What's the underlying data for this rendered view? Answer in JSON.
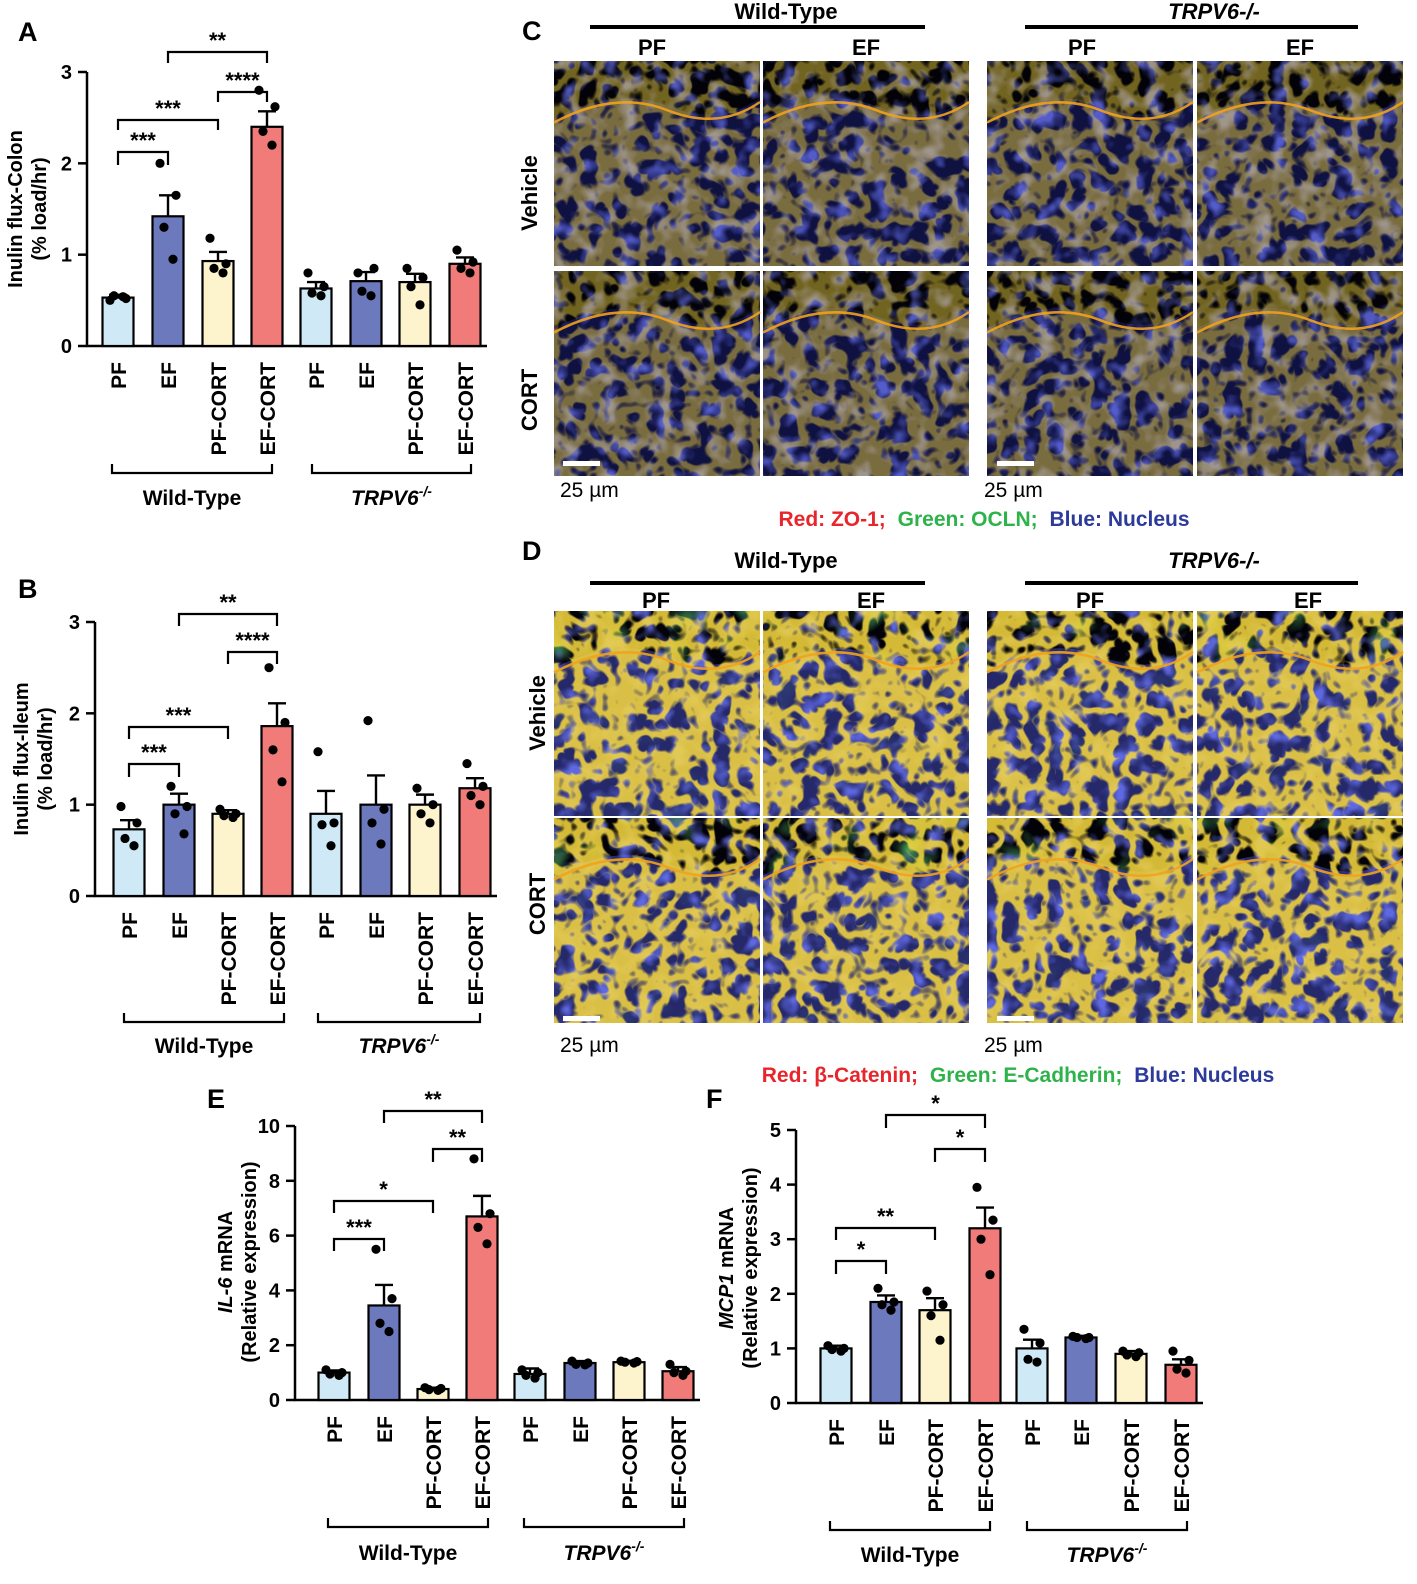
{
  "figure": {
    "panel_letters": [
      "A",
      "B",
      "C",
      "D",
      "E",
      "F"
    ],
    "group_labels": [
      "Wild-Type",
      "TRPV6",
      "-/-"
    ],
    "microscopy": {
      "col_groups": [
        "Wild-Type",
        "TRPV6-/-"
      ],
      "col_sub": [
        "PF",
        "EF",
        "PF",
        "EF"
      ],
      "rows": [
        "Vehicle",
        "CORT"
      ],
      "scale_bar": "25 µm",
      "legend_C": [
        {
          "text": "Red: ZO-1;",
          "color": "#e8252a"
        },
        {
          "text": "Green: OCLN;",
          "color": "#2db34a"
        },
        {
          "text": "Blue: Nucleus",
          "color": "#2b3a9b"
        }
      ],
      "legend_D": [
        {
          "text": "Red: β-Catenin;",
          "color": "#e8252a"
        },
        {
          "text": "Green: E-Cadherin;",
          "color": "#2db34a"
        },
        {
          "text": "Blue: Nucleus",
          "color": "#2b3a9b"
        }
      ]
    }
  },
  "chart_data": [
    {
      "panel": "A",
      "type": "bar",
      "categories": [
        "PF",
        "EF",
        "PF-CORT",
        "EF-CORT",
        "PF",
        "EF",
        "PF-CORT",
        "EF-CORT"
      ],
      "groups": [
        "Wild-Type",
        "TRPV6-/-"
      ],
      "ylabel": [
        "Inulin flux-Colon",
        "(% load/hr)"
      ],
      "ylim": [
        0,
        3
      ],
      "yticks": [
        0,
        1,
        2,
        3
      ],
      "values": [
        0.53,
        1.42,
        0.93,
        2.4,
        0.63,
        0.71,
        0.7,
        0.9
      ],
      "errors": [
        0.03,
        0.23,
        0.1,
        0.17,
        0.07,
        0.1,
        0.09,
        0.07
      ],
      "points": [
        [
          0.5,
          0.52,
          0.55,
          0.54
        ],
        [
          2.0,
          1.65,
          1.3,
          0.95
        ],
        [
          1.18,
          0.9,
          0.85,
          0.8
        ],
        [
          2.8,
          2.62,
          2.35,
          2.2
        ],
        [
          0.8,
          0.65,
          0.58,
          0.55
        ],
        [
          0.8,
          0.85,
          0.6,
          0.55
        ],
        [
          0.85,
          0.75,
          0.65,
          0.45
        ],
        [
          1.05,
          0.92,
          0.85,
          0.8
        ]
      ],
      "colors": [
        "#cfe9f6",
        "#6c79bd",
        "#fdf3cc",
        "#f07b78",
        "#cfe9f6",
        "#6c79bd",
        "#fdf3cc",
        "#f07b78"
      ],
      "significance": [
        {
          "from": 0,
          "to": 1,
          "label": "***"
        },
        {
          "from": 0,
          "to": 2,
          "label": "***"
        },
        {
          "from": 2,
          "to": 3,
          "label": "****"
        },
        {
          "from": 1,
          "to": 3,
          "label": "**"
        }
      ]
    },
    {
      "panel": "B",
      "type": "bar",
      "categories": [
        "PF",
        "EF",
        "PF-CORT",
        "EF-CORT",
        "PF",
        "EF",
        "PF-CORT",
        "EF-CORT"
      ],
      "groups": [
        "Wild-Type",
        "TRPV6-/-"
      ],
      "ylabel": [
        "Inulin flux-Ileum",
        "(% load/hr)"
      ],
      "ylim": [
        0,
        3
      ],
      "yticks": [
        0,
        1,
        2,
        3
      ],
      "values": [
        0.73,
        1.0,
        0.9,
        1.86,
        0.9,
        1.0,
        1.0,
        1.18
      ],
      "errors": [
        0.1,
        0.12,
        0.04,
        0.25,
        0.25,
        0.32,
        0.11,
        0.11
      ],
      "points": [
        [
          0.98,
          0.8,
          0.63,
          0.55
        ],
        [
          1.2,
          0.98,
          0.9,
          0.68
        ],
        [
          0.95,
          0.9,
          0.88,
          0.86
        ],
        [
          2.5,
          1.9,
          1.6,
          1.25
        ],
        [
          1.58,
          0.8,
          0.78,
          0.55
        ],
        [
          1.92,
          0.95,
          0.8,
          0.57
        ],
        [
          1.18,
          1.0,
          0.9,
          0.8
        ],
        [
          1.45,
          1.2,
          1.1,
          1.0
        ]
      ],
      "colors": [
        "#cfe9f6",
        "#6c79bd",
        "#fdf3cc",
        "#f07b78",
        "#cfe9f6",
        "#6c79bd",
        "#fdf3cc",
        "#f07b78"
      ],
      "significance": [
        {
          "from": 0,
          "to": 1,
          "label": "***"
        },
        {
          "from": 0,
          "to": 2,
          "label": "***"
        },
        {
          "from": 2,
          "to": 3,
          "label": "****"
        },
        {
          "from": 1,
          "to": 3,
          "label": "**"
        }
      ]
    },
    {
      "panel": "E",
      "type": "bar",
      "categories": [
        "PF",
        "EF",
        "PF-CORT",
        "EF-CORT",
        "PF",
        "EF",
        "PF-CORT",
        "EF-CORT"
      ],
      "groups": [
        "Wild-Type",
        "TRPV6-/-"
      ],
      "ylabel": [
        "IL-6 mRNA",
        "(Relative expression)"
      ],
      "ylim": [
        0,
        10
      ],
      "yticks": [
        0,
        2,
        4,
        6,
        8,
        10
      ],
      "values": [
        1.0,
        3.45,
        0.4,
        6.7,
        0.95,
        1.35,
        1.38,
        1.05
      ],
      "errors": [
        0.08,
        0.75,
        0.05,
        0.75,
        0.2,
        0.07,
        0.05,
        0.15
      ],
      "points": [
        [
          1.1,
          1.0,
          0.95,
          0.9
        ],
        [
          5.5,
          3.7,
          2.8,
          2.5
        ],
        [
          0.45,
          0.42,
          0.38,
          0.35
        ],
        [
          8.8,
          6.8,
          6.3,
          5.7
        ],
        [
          1.1,
          1.0,
          0.9,
          0.8
        ],
        [
          1.42,
          1.35,
          1.3,
          1.28
        ],
        [
          1.42,
          1.4,
          1.38,
          1.35
        ],
        [
          1.3,
          1.05,
          1.0,
          0.9
        ]
      ],
      "colors": [
        "#cfe9f6",
        "#6c79bd",
        "#fdf3cc",
        "#f07b78",
        "#cfe9f6",
        "#6c79bd",
        "#fdf3cc",
        "#f07b78"
      ],
      "significance": [
        {
          "from": 0,
          "to": 1,
          "label": "***"
        },
        {
          "from": 0,
          "to": 2,
          "label": "*"
        },
        {
          "from": 2,
          "to": 3,
          "label": "**"
        },
        {
          "from": 1,
          "to": 3,
          "label": "**"
        }
      ]
    },
    {
      "panel": "F",
      "type": "bar",
      "categories": [
        "PF",
        "EF",
        "PF-CORT",
        "EF-CORT",
        "PF",
        "EF",
        "PF-CORT",
        "EF-CORT"
      ],
      "groups": [
        "Wild-Type",
        "TRPV6-/-"
      ],
      "ylabel": [
        "MCP1 mRNA",
        "(Relative expression)"
      ],
      "ylim": [
        0,
        5
      ],
      "yticks": [
        0,
        1,
        2,
        3,
        4,
        5
      ],
      "values": [
        1.0,
        1.85,
        1.7,
        3.2,
        1.0,
        1.2,
        0.9,
        0.7
      ],
      "errors": [
        0.05,
        0.12,
        0.22,
        0.38,
        0.16,
        0.03,
        0.05,
        0.1
      ],
      "points": [
        [
          1.05,
          1.0,
          0.98,
          0.95
        ],
        [
          2.1,
          1.85,
          1.8,
          1.7
        ],
        [
          2.05,
          1.8,
          1.6,
          1.15
        ],
        [
          3.95,
          3.35,
          3.0,
          2.35
        ],
        [
          1.35,
          1.1,
          0.8,
          0.75
        ],
        [
          1.22,
          1.2,
          1.2,
          1.18
        ],
        [
          0.95,
          0.92,
          0.88,
          0.85
        ],
        [
          0.95,
          0.78,
          0.62,
          0.55
        ]
      ],
      "colors": [
        "#cfe9f6",
        "#6c79bd",
        "#fdf3cc",
        "#f07b78",
        "#cfe9f6",
        "#6c79bd",
        "#fdf3cc",
        "#f07b78"
      ],
      "significance": [
        {
          "from": 0,
          "to": 1,
          "label": "*"
        },
        {
          "from": 0,
          "to": 2,
          "label": "**"
        },
        {
          "from": 2,
          "to": 3,
          "label": "*"
        },
        {
          "from": 1,
          "to": 3,
          "label": "*"
        }
      ]
    }
  ]
}
